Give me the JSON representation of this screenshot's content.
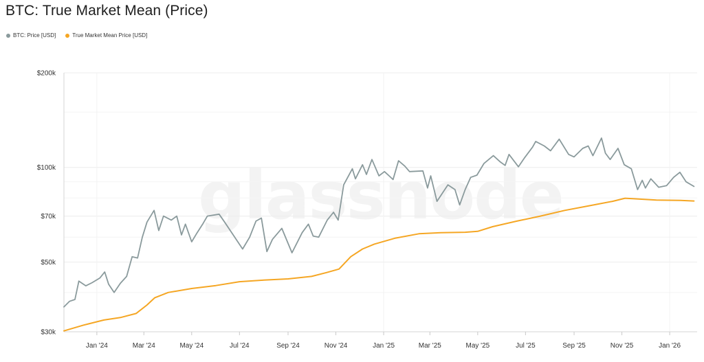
{
  "chart_data": {
    "type": "line",
    "title": "BTC: True Market Mean (Price)",
    "watermark": "glassnode",
    "y_scale": "log",
    "ylim": [
      30000,
      200000
    ],
    "xlim": [
      "2023-11-20",
      "2026-02-05"
    ],
    "y_ticks": [
      {
        "value": 200000,
        "label": "$200k"
      },
      {
        "value": 100000,
        "label": "$100k"
      },
      {
        "value": 70000,
        "label": "$70k"
      },
      {
        "value": 50000,
        "label": "$50k"
      },
      {
        "value": 30000,
        "label": "$30k"
      }
    ],
    "x_ticks": [
      {
        "date": "2024-01-01",
        "label": "Jan '24"
      },
      {
        "date": "2024-03-01",
        "label": "Mar '24"
      },
      {
        "date": "2024-05-01",
        "label": "May '24"
      },
      {
        "date": "2024-07-01",
        "label": "Jul '24"
      },
      {
        "date": "2024-09-01",
        "label": "Sep '24"
      },
      {
        "date": "2024-11-01",
        "label": "Nov '24"
      },
      {
        "date": "2025-01-01",
        "label": "Jan '25"
      },
      {
        "date": "2025-03-01",
        "label": "Mar '25"
      },
      {
        "date": "2025-05-01",
        "label": "May '25"
      },
      {
        "date": "2025-07-01",
        "label": "Jul '25"
      },
      {
        "date": "2025-09-01",
        "label": "Sep '25"
      },
      {
        "date": "2025-11-01",
        "label": "Nov '25"
      },
      {
        "date": "2026-01-01",
        "label": "Jan '26"
      }
    ],
    "grid": true,
    "legend_position": "top-left",
    "series": [
      {
        "name": "BTC: Price [USD]",
        "color": "#8a9a9c",
        "points": [
          [
            "2023-11-20",
            36000
          ],
          [
            "2023-11-27",
            37500
          ],
          [
            "2023-12-04",
            38000
          ],
          [
            "2023-12-09",
            43500
          ],
          [
            "2023-12-18",
            42000
          ],
          [
            "2023-12-26",
            43000
          ],
          [
            "2024-01-05",
            44500
          ],
          [
            "2024-01-11",
            46500
          ],
          [
            "2024-01-16",
            42500
          ],
          [
            "2024-01-23",
            40000
          ],
          [
            "2024-01-31",
            42800
          ],
          [
            "2024-02-08",
            45000
          ],
          [
            "2024-02-15",
            52000
          ],
          [
            "2024-02-22",
            51500
          ],
          [
            "2024-02-28",
            60000
          ],
          [
            "2024-03-05",
            67000
          ],
          [
            "2024-03-14",
            73000
          ],
          [
            "2024-03-20",
            63000
          ],
          [
            "2024-03-26",
            70000
          ],
          [
            "2024-04-05",
            68000
          ],
          [
            "2024-04-12",
            70000
          ],
          [
            "2024-04-18",
            61000
          ],
          [
            "2024-04-23",
            66000
          ],
          [
            "2024-05-01",
            58000
          ],
          [
            "2024-05-08",
            62000
          ],
          [
            "2024-05-15",
            66000
          ],
          [
            "2024-05-21",
            70000
          ],
          [
            "2024-06-05",
            71000
          ],
          [
            "2024-06-12",
            67000
          ],
          [
            "2024-06-24",
            60500
          ],
          [
            "2024-07-05",
            55000
          ],
          [
            "2024-07-14",
            60000
          ],
          [
            "2024-07-22",
            67500
          ],
          [
            "2024-07-29",
            69000
          ],
          [
            "2024-08-05",
            54000
          ],
          [
            "2024-08-12",
            59000
          ],
          [
            "2024-08-24",
            64000
          ],
          [
            "2024-09-06",
            53500
          ],
          [
            "2024-09-19",
            62000
          ],
          [
            "2024-09-27",
            66000
          ],
          [
            "2024-10-03",
            60500
          ],
          [
            "2024-10-10",
            60000
          ],
          [
            "2024-10-21",
            68000
          ],
          [
            "2024-10-29",
            72000
          ],
          [
            "2024-11-04",
            68000
          ],
          [
            "2024-11-11",
            88000
          ],
          [
            "2024-11-22",
            99000
          ],
          [
            "2024-11-26",
            92000
          ],
          [
            "2024-12-05",
            102000
          ],
          [
            "2024-12-10",
            95000
          ],
          [
            "2024-12-17",
            106000
          ],
          [
            "2024-12-26",
            94000
          ],
          [
            "2025-01-02",
            97000
          ],
          [
            "2025-01-08",
            94000
          ],
          [
            "2025-01-13",
            91500
          ],
          [
            "2025-01-20",
            105000
          ],
          [
            "2025-01-28",
            101000
          ],
          [
            "2025-02-03",
            97000
          ],
          [
            "2025-02-20",
            97500
          ],
          [
            "2025-02-26",
            86000
          ],
          [
            "2025-03-02",
            94000
          ],
          [
            "2025-03-10",
            78000
          ],
          [
            "2025-03-24",
            88000
          ],
          [
            "2025-04-02",
            85000
          ],
          [
            "2025-04-08",
            76000
          ],
          [
            "2025-04-15",
            85000
          ],
          [
            "2025-04-22",
            93000
          ],
          [
            "2025-04-30",
            94500
          ],
          [
            "2025-05-09",
            103000
          ],
          [
            "2025-05-21",
            109000
          ],
          [
            "2025-05-30",
            104000
          ],
          [
            "2025-06-05",
            101500
          ],
          [
            "2025-06-10",
            110000
          ],
          [
            "2025-06-22",
            100500
          ],
          [
            "2025-06-30",
            107500
          ],
          [
            "2025-07-10",
            116000
          ],
          [
            "2025-07-14",
            121000
          ],
          [
            "2025-07-25",
            117000
          ],
          [
            "2025-08-02",
            113000
          ],
          [
            "2025-08-13",
            123000
          ],
          [
            "2025-08-25",
            110000
          ],
          [
            "2025-09-01",
            108000
          ],
          [
            "2025-09-12",
            115000
          ],
          [
            "2025-09-19",
            117000
          ],
          [
            "2025-09-25",
            109000
          ],
          [
            "2025-10-06",
            124000
          ],
          [
            "2025-10-11",
            111000
          ],
          [
            "2025-10-17",
            106000
          ],
          [
            "2025-10-27",
            115000
          ],
          [
            "2025-11-04",
            102000
          ],
          [
            "2025-11-13",
            99000
          ],
          [
            "2025-11-21",
            85000
          ],
          [
            "2025-11-27",
            91000
          ],
          [
            "2025-12-01",
            86000
          ],
          [
            "2025-12-08",
            92000
          ],
          [
            "2025-12-18",
            86500
          ],
          [
            "2025-12-28",
            87500
          ],
          [
            "2026-01-06",
            93000
          ],
          [
            "2026-01-14",
            96500
          ],
          [
            "2026-01-22",
            90000
          ],
          [
            "2026-02-01",
            87000
          ]
        ]
      },
      {
        "name": "True Market Mean Price [USD]",
        "color": "#f5a623",
        "points": [
          [
            "2023-11-20",
            30200
          ],
          [
            "2023-12-15",
            31500
          ],
          [
            "2024-01-10",
            32700
          ],
          [
            "2024-01-31",
            33300
          ],
          [
            "2024-02-20",
            34300
          ],
          [
            "2024-03-05",
            36500
          ],
          [
            "2024-03-15",
            38500
          ],
          [
            "2024-04-01",
            40000
          ],
          [
            "2024-05-01",
            41200
          ],
          [
            "2024-06-01",
            42100
          ],
          [
            "2024-07-01",
            43300
          ],
          [
            "2024-08-01",
            43800
          ],
          [
            "2024-09-01",
            44200
          ],
          [
            "2024-10-01",
            45000
          ],
          [
            "2024-10-20",
            46300
          ],
          [
            "2024-11-05",
            47500
          ],
          [
            "2024-11-20",
            52000
          ],
          [
            "2024-12-05",
            55000
          ],
          [
            "2024-12-20",
            57000
          ],
          [
            "2025-01-15",
            59500
          ],
          [
            "2025-02-15",
            61500
          ],
          [
            "2025-03-15",
            62000
          ],
          [
            "2025-04-15",
            62200
          ],
          [
            "2025-05-01",
            62600
          ],
          [
            "2025-05-20",
            64800
          ],
          [
            "2025-06-20",
            67500
          ],
          [
            "2025-07-20",
            70000
          ],
          [
            "2025-08-20",
            73000
          ],
          [
            "2025-09-20",
            75500
          ],
          [
            "2025-10-20",
            78000
          ],
          [
            "2025-11-05",
            79800
          ],
          [
            "2025-11-15",
            79500
          ],
          [
            "2025-12-15",
            78700
          ],
          [
            "2026-01-15",
            78500
          ],
          [
            "2026-02-01",
            78200
          ]
        ]
      }
    ]
  }
}
